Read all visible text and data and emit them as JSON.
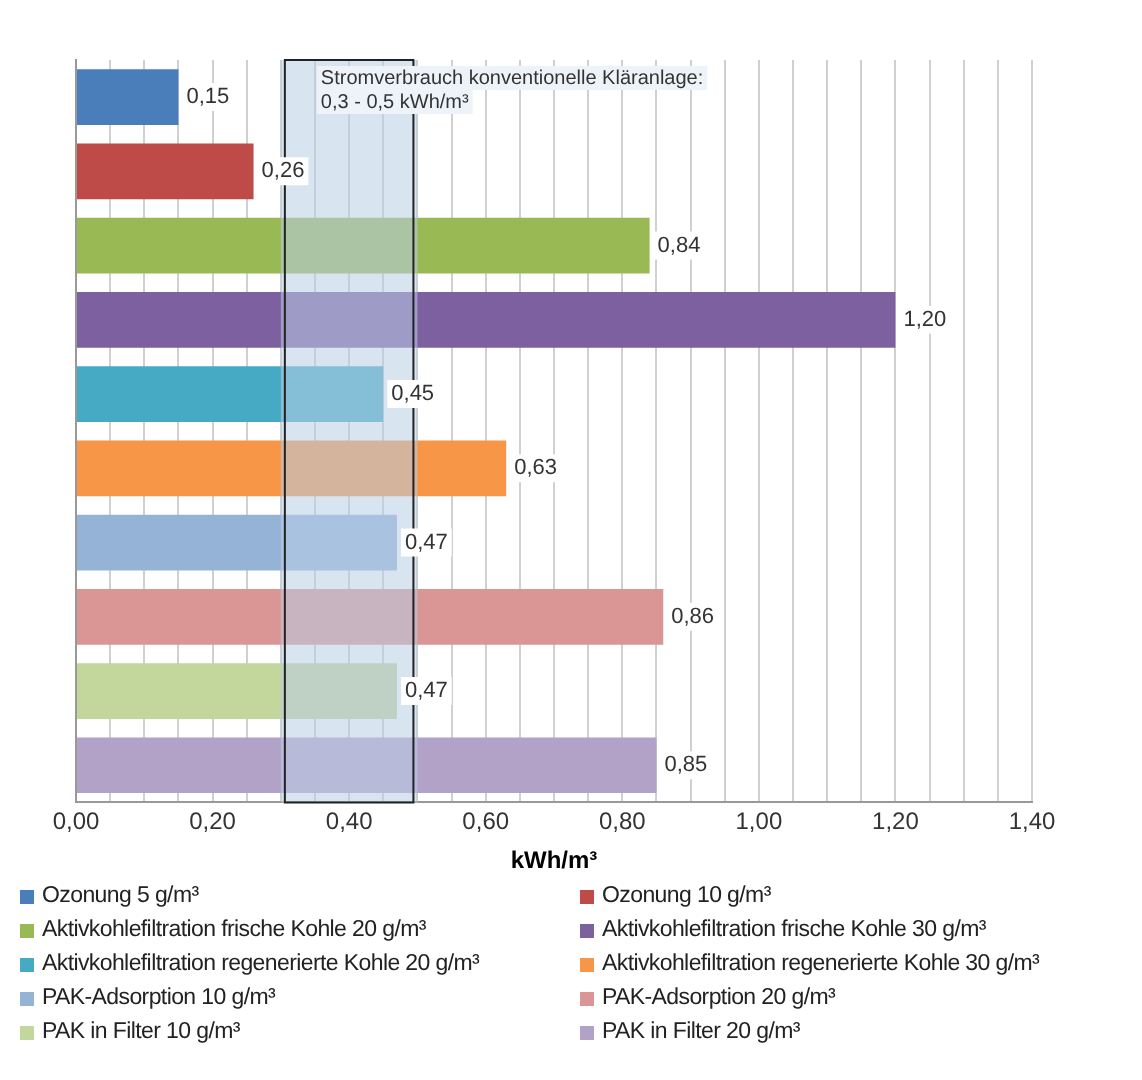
{
  "chart_data": {
    "type": "bar",
    "orientation": "horizontal",
    "xlabel": "kWh/m³",
    "categories": [
      null,
      null,
      null,
      null,
      null,
      null,
      null,
      null,
      null,
      null
    ],
    "series": [
      {
        "name": "Ozonung 5 g/m³",
        "color": "#4a7ebb",
        "values": [
          0.15,
          null,
          null,
          null,
          null,
          null,
          null,
          null,
          null,
          null
        ],
        "value_labels": [
          "0,15",
          null,
          null,
          null,
          null,
          null,
          null,
          null,
          null,
          null
        ]
      },
      {
        "name": "Ozonung 10 g/m³",
        "color": "#be4b48",
        "values": [
          null,
          0.26,
          null,
          null,
          null,
          null,
          null,
          null,
          null,
          null
        ],
        "value_labels": [
          null,
          "0,26",
          null,
          null,
          null,
          null,
          null,
          null,
          null,
          null
        ]
      },
      {
        "name": "Aktivkohlefiltration frische Kohle 20 g/m³",
        "color": "#98b954",
        "values": [
          null,
          null,
          0.84,
          null,
          null,
          null,
          null,
          null,
          null,
          null
        ],
        "value_labels": [
          null,
          null,
          "0,84",
          null,
          null,
          null,
          null,
          null,
          null,
          null
        ]
      },
      {
        "name": "Aktivkohlefiltration frische Kohle 30 g/m³",
        "color": "#7d60a0",
        "values": [
          null,
          null,
          null,
          1.2,
          null,
          null,
          null,
          null,
          null,
          null
        ],
        "value_labels": [
          null,
          null,
          null,
          "1,20",
          null,
          null,
          null,
          null,
          null,
          null
        ]
      },
      {
        "name": "Aktivkohlefiltration regenerierte Kohle 20 g/m³",
        "color": "#46aac5",
        "values": [
          null,
          null,
          null,
          null,
          0.45,
          null,
          null,
          null,
          null,
          null
        ],
        "value_labels": [
          null,
          null,
          null,
          null,
          "0,45",
          null,
          null,
          null,
          null,
          null
        ]
      },
      {
        "name": "Aktivkohlefiltration regenerierte Kohle 30 g/m³",
        "color": "#f79646",
        "values": [
          null,
          null,
          null,
          null,
          null,
          0.63,
          null,
          null,
          null,
          null
        ],
        "value_labels": [
          null,
          null,
          null,
          null,
          null,
          "0,63",
          null,
          null,
          null,
          null
        ]
      },
      {
        "name": "PAK-Adsorption 10 g/m³",
        "color": "#95b3d7",
        "values": [
          null,
          null,
          null,
          null,
          null,
          null,
          0.47,
          null,
          null,
          null
        ],
        "value_labels": [
          null,
          null,
          null,
          null,
          null,
          null,
          "0,47",
          null,
          null,
          null
        ]
      },
      {
        "name": "PAK-Adsorption 20 g/m³",
        "color": "#d99694",
        "values": [
          null,
          null,
          null,
          null,
          null,
          null,
          null,
          0.86,
          null,
          null
        ],
        "value_labels": [
          null,
          null,
          null,
          null,
          null,
          null,
          null,
          "0,86",
          null,
          null
        ]
      },
      {
        "name": "PAK in Filter 10 g/m³",
        "color": "#c3d69b",
        "values": [
          null,
          null,
          null,
          null,
          null,
          null,
          null,
          null,
          0.47,
          null
        ],
        "value_labels": [
          null,
          null,
          null,
          null,
          null,
          null,
          null,
          null,
          "0,47",
          null
        ]
      },
      {
        "name": "PAK in Filter 20 g/m³",
        "color": "#b3a2c7",
        "values": [
          null,
          null,
          null,
          null,
          null,
          null,
          null,
          null,
          null,
          0.85
        ],
        "value_labels": [
          null,
          null,
          null,
          null,
          null,
          null,
          null,
          null,
          null,
          "0,85"
        ]
      }
    ],
    "xlim": [
      0,
      1.4
    ],
    "xticks": [
      {
        "value": 0,
        "label": "0,00"
      },
      {
        "value": 0.05,
        "label": null
      },
      {
        "value": 0.1,
        "label": null
      },
      {
        "value": 0.15,
        "label": null
      },
      {
        "value": 0.2,
        "label": "0,20"
      },
      {
        "value": 0.25,
        "label": null
      },
      {
        "value": 0.3,
        "label": null
      },
      {
        "value": 0.35,
        "label": null
      },
      {
        "value": 0.4,
        "label": "0,40"
      },
      {
        "value": 0.45,
        "label": null
      },
      {
        "value": 0.5,
        "label": null
      },
      {
        "value": 0.55,
        "label": null
      },
      {
        "value": 0.6,
        "label": "0,60"
      },
      {
        "value": 0.65,
        "label": null
      },
      {
        "value": 0.7,
        "label": null
      },
      {
        "value": 0.75,
        "label": null
      },
      {
        "value": 0.8,
        "label": "0,80"
      },
      {
        "value": 0.85,
        "label": null
      },
      {
        "value": 0.9,
        "label": null
      },
      {
        "value": 0.95,
        "label": null
      },
      {
        "value": 1.0,
        "label": "1,00"
      },
      {
        "value": 1.05,
        "label": null
      },
      {
        "value": 1.1,
        "label": null
      },
      {
        "value": 1.15,
        "label": null
      },
      {
        "value": 1.2,
        "label": "1,20"
      },
      {
        "value": 1.25,
        "label": null
      },
      {
        "value": 1.3,
        "label": null
      },
      {
        "value": 1.35,
        "label": null
      },
      {
        "value": 1.4,
        "label": "1,40"
      }
    ],
    "bands": [
      {
        "axis": "x",
        "from": 0.3,
        "to": 0.5,
        "label": "Stromverbrauch konventionelle Kläranlage:\n0,3 - 0,5 kWh/m³",
        "color": "#b9cde5"
      }
    ],
    "grid": "x",
    "legend": "bottom",
    "tick_labels": "x"
  }
}
